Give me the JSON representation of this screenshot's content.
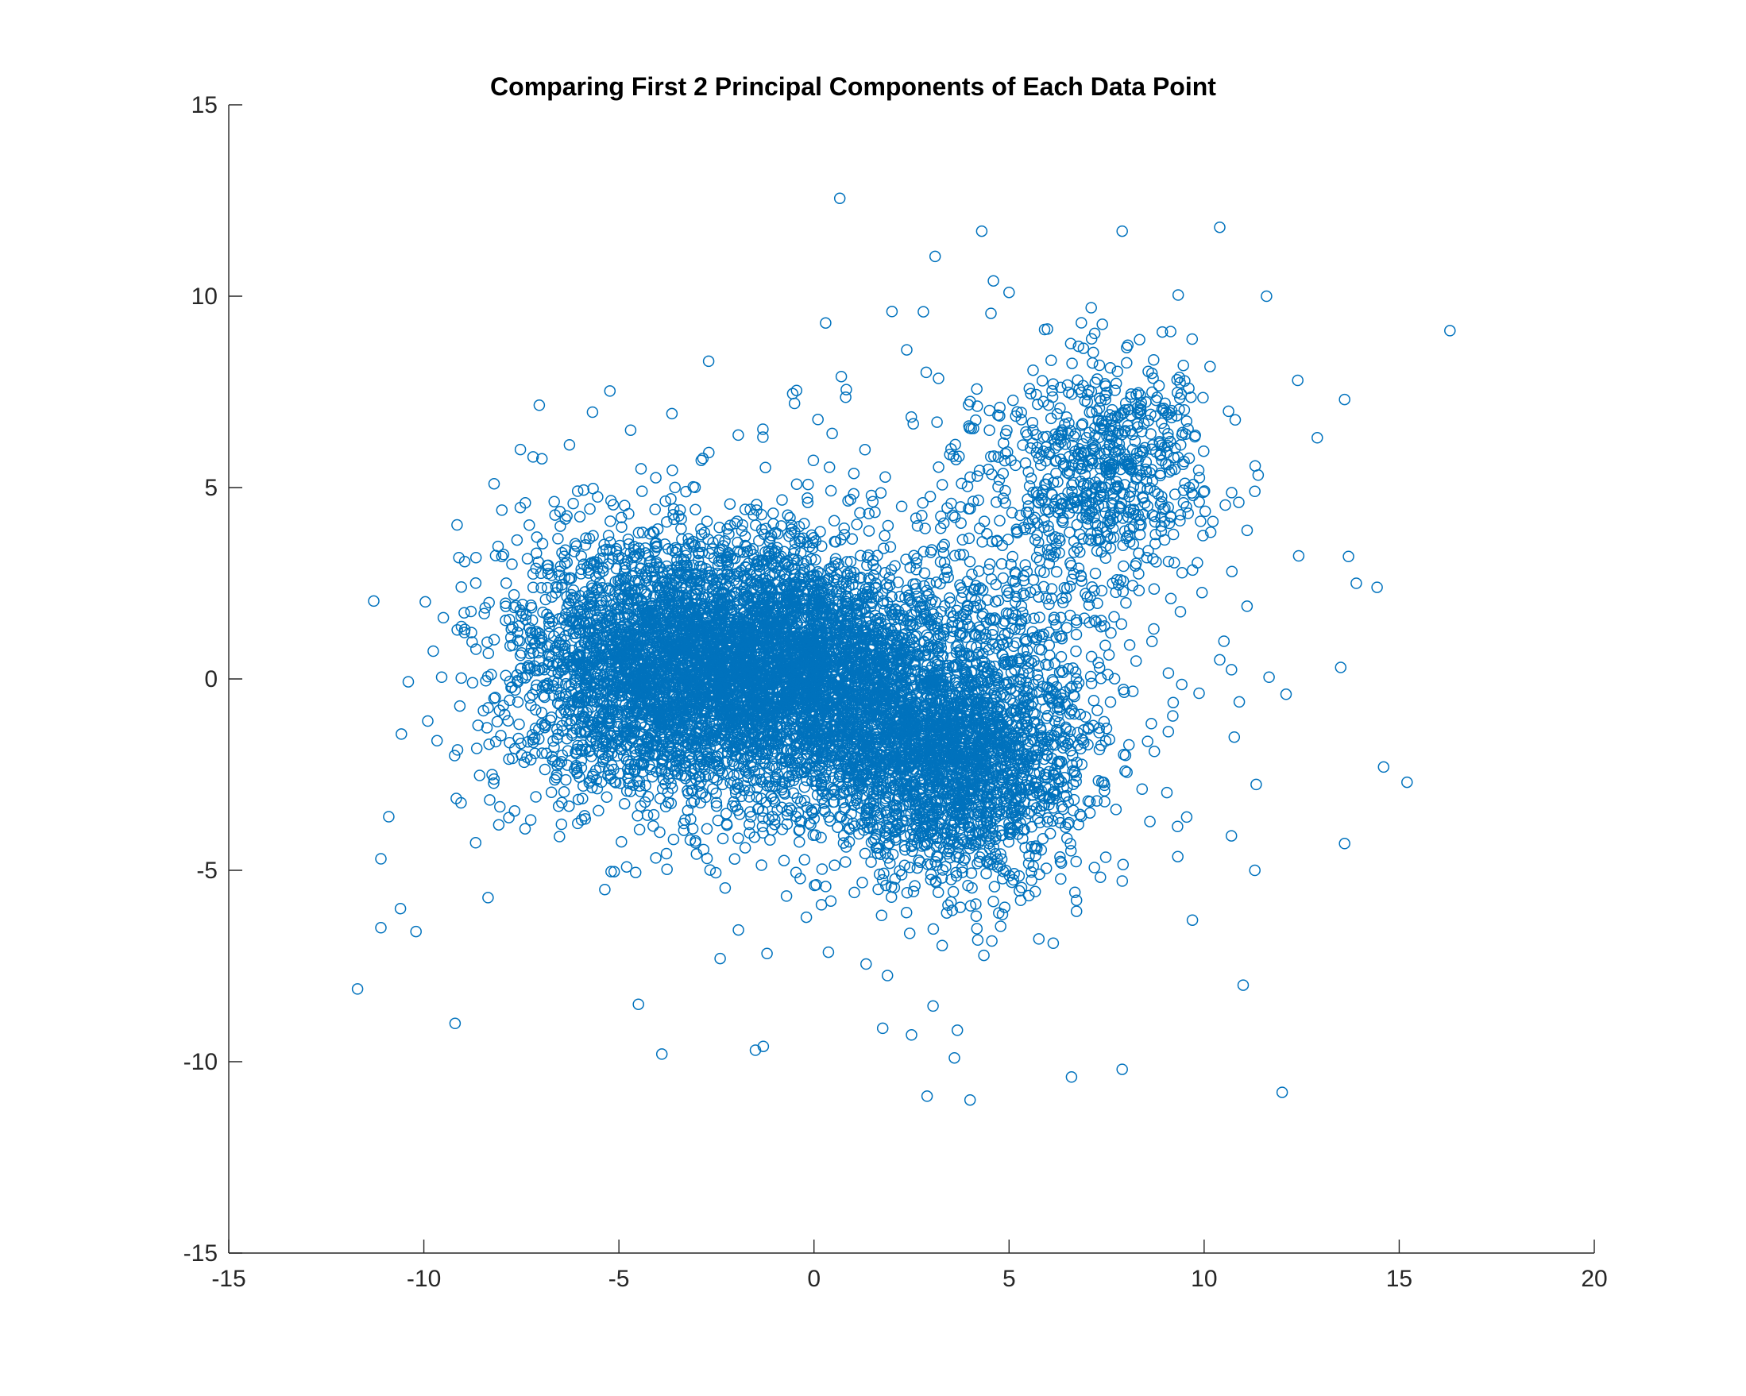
{
  "chart_data": {
    "type": "scatter",
    "title": "Comparing First 2 Principal Components of Each Data Point",
    "xlabel": "",
    "ylabel": "",
    "xlim": [
      -15,
      20
    ],
    "ylim": [
      -15,
      15
    ],
    "xticks": [
      -15,
      -10,
      -5,
      0,
      5,
      10,
      15,
      20
    ],
    "yticks": [
      -15,
      -10,
      -5,
      0,
      5,
      10,
      15
    ],
    "xtick_labels": [
      "-15",
      "-10",
      "-5",
      "0",
      "5",
      "10",
      "15",
      "20"
    ],
    "ytick_labels": [
      "-15",
      "-10",
      "-5",
      "0",
      "5",
      "10",
      "15"
    ],
    "grid": false,
    "box": false,
    "legend": "none",
    "marker": "open-circle",
    "color": "#0072BD",
    "series": [
      {
        "clusters": [
          {
            "center": [
              -4.0,
              0.2
            ],
            "spread": [
              1.9,
              1.7
            ],
            "count": 2600
          },
          {
            "center": [
              -1.0,
              0.6
            ],
            "spread": [
              1.7,
              1.5
            ],
            "count": 2000
          },
          {
            "center": [
              1.5,
              -0.8
            ],
            "spread": [
              1.8,
              1.6
            ],
            "count": 1500
          },
          {
            "center": [
              3.8,
              -2.2
            ],
            "spread": [
              1.6,
              1.6
            ],
            "count": 1700
          },
          {
            "center": [
              7.6,
              5.8
            ],
            "spread": [
              1.2,
              1.3
            ],
            "count": 550
          },
          {
            "center": [
              5.5,
              2.5
            ],
            "spread": [
              2.2,
              2.6
            ],
            "count": 450
          },
          {
            "center": [
              0.0,
              0.0
            ],
            "spread": [
              4.5,
              3.2
            ],
            "count": 500
          }
        ],
        "outliers": [
          [
            -11.7,
            -8.1
          ],
          [
            -11.1,
            -4.7
          ],
          [
            -11.1,
            -6.5
          ],
          [
            -10.9,
            -3.6
          ],
          [
            -10.6,
            -6.0
          ],
          [
            -10.2,
            -6.6
          ],
          [
            -9.9,
            -1.1
          ],
          [
            -9.5,
            1.6
          ],
          [
            -9.2,
            -9.0
          ],
          [
            -8.2,
            5.1
          ],
          [
            -8.0,
            3.2
          ],
          [
            -7.4,
            4.6
          ],
          [
            -7.2,
            5.8
          ],
          [
            -4.7,
            6.5
          ],
          [
            -4.5,
            -8.5
          ],
          [
            -3.9,
            -9.8
          ],
          [
            -2.7,
            8.3
          ],
          [
            -1.5,
            -9.7
          ],
          [
            -1.3,
            -9.6
          ],
          [
            -0.5,
            7.2
          ],
          [
            0.3,
            9.3
          ],
          [
            0.7,
            7.9
          ],
          [
            2.0,
            9.6
          ],
          [
            2.5,
            -9.3
          ],
          [
            2.9,
            -10.9
          ],
          [
            3.6,
            -9.9
          ],
          [
            4.0,
            -11.0
          ],
          [
            4.3,
            11.7
          ],
          [
            4.6,
            10.4
          ],
          [
            5.0,
            10.1
          ],
          [
            6.6,
            -10.4
          ],
          [
            7.9,
            11.7
          ],
          [
            7.9,
            -10.2
          ],
          [
            10.4,
            11.8
          ],
          [
            11.6,
            10.0
          ],
          [
            12.0,
            -10.8
          ],
          [
            12.1,
            -0.4
          ],
          [
            12.4,
            7.8
          ],
          [
            12.9,
            6.3
          ],
          [
            13.5,
            0.3
          ],
          [
            13.6,
            7.3
          ],
          [
            13.6,
            -4.3
          ],
          [
            13.7,
            3.2
          ],
          [
            13.9,
            2.5
          ],
          [
            14.6,
            -2.3
          ],
          [
            15.2,
            -2.7
          ],
          [
            16.3,
            9.1
          ],
          [
            11.3,
            4.9
          ],
          [
            11.0,
            -8.0
          ],
          [
            11.3,
            -5.0
          ],
          [
            10.7,
            -4.1
          ],
          [
            9.7,
            -6.3
          ],
          [
            11.1,
            1.9
          ],
          [
            10.4,
            0.5
          ],
          [
            10.9,
            -0.6
          ]
        ]
      }
    ]
  }
}
